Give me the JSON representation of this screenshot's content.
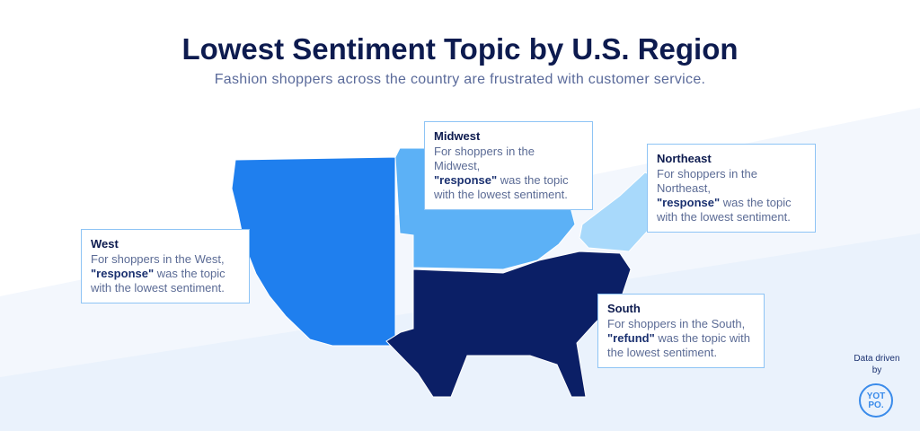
{
  "header": {
    "title": "Lowest Sentiment Topic by U.S. Region",
    "subtitle": "Fashion shoppers across the country are frustrated with customer service."
  },
  "regions": [
    {
      "name": "West",
      "intro": "For shoppers in the West,",
      "topic": "\"response\"",
      "rest": "was the topic with the lowest sentiment."
    },
    {
      "name": "Midwest",
      "intro": "For shoppers in the Midwest,",
      "topic": "\"response\"",
      "rest": "was the topic with the lowest sentiment."
    },
    {
      "name": "Northeast",
      "intro": "For shoppers in the Northeast,",
      "topic": "\"response\"",
      "rest": "was the topic with the lowest sentiment."
    },
    {
      "name": "South",
      "intro": "For shoppers in the South,",
      "topic": "\"refund\"",
      "rest": "was the topic with the lowest sentiment."
    }
  ],
  "badge": {
    "caption": "Data driven by",
    "logo_top": "YOT",
    "logo_bottom": "PO."
  }
}
